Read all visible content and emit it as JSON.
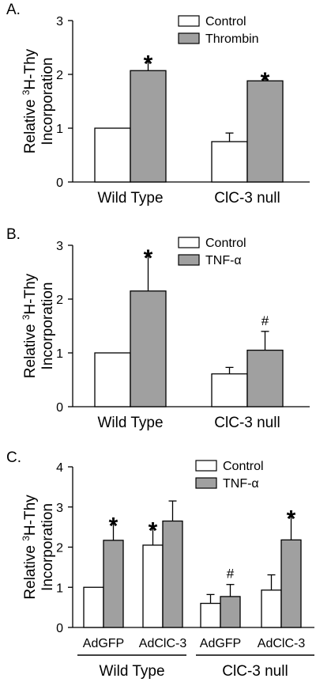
{
  "colors": {
    "control": "#ffffff",
    "treated": "#a0a0a0",
    "stroke": "#000000"
  },
  "chart_data": [
    {
      "type": "bar",
      "panel_label": "A.",
      "ylabel_lines": [
        "Relative ³H-Thy",
        "Incorporation"
      ],
      "ylim": [
        0,
        3
      ],
      "yticks": [
        0,
        1,
        2,
        3
      ],
      "categories": [
        "Wild Type",
        "ClC-3 null"
      ],
      "series": [
        {
          "name": "Control",
          "values": [
            1.0,
            0.75
          ],
          "errors": [
            0,
            0.16
          ],
          "sig": [
            "",
            ""
          ]
        },
        {
          "name": "Thrombin",
          "values": [
            2.07,
            1.88
          ],
          "errors": [
            0.22,
            0.09
          ],
          "sig": [
            "*",
            "*"
          ]
        }
      ],
      "legend_position": "top-right"
    },
    {
      "type": "bar",
      "panel_label": "B.",
      "ylabel_lines": [
        "Relative ³H-Thy",
        "Incorporation"
      ],
      "ylim": [
        0,
        3
      ],
      "yticks": [
        0,
        1,
        2,
        3
      ],
      "categories": [
        "Wild Type",
        "ClC-3 null"
      ],
      "series": [
        {
          "name": "Control",
          "values": [
            1.0,
            0.61
          ],
          "errors": [
            0,
            0.12
          ],
          "sig": [
            "",
            ""
          ]
        },
        {
          "name": "TNF-α",
          "values": [
            2.15,
            1.05
          ],
          "errors": [
            0.7,
            0.35
          ],
          "sig": [
            "*",
            "#"
          ]
        }
      ],
      "legend_position": "top-right"
    },
    {
      "type": "bar",
      "panel_label": "C.",
      "ylabel_lines": [
        "Relative ³H-Thy",
        "Incorporation"
      ],
      "ylim": [
        0,
        4
      ],
      "yticks": [
        0,
        1,
        2,
        3,
        4
      ],
      "categories": [
        "AdGFP",
        "AdClC-3",
        "AdGFP",
        "AdClC-3"
      ],
      "groups": [
        "Wild Type",
        "ClC-3 null"
      ],
      "series": [
        {
          "name": "Control",
          "values": [
            1.0,
            2.05,
            0.6,
            0.93
          ],
          "errors": [
            0,
            0.48,
            0.22,
            0.38
          ],
          "sig": [
            "",
            "*",
            "",
            ""
          ]
        },
        {
          "name": "TNF-α",
          "values": [
            2.17,
            2.65,
            0.77,
            2.18
          ],
          "errors": [
            0.48,
            0.5,
            0.3,
            0.65
          ],
          "sig": [
            "*",
            "",
            "#",
            "*"
          ]
        }
      ],
      "legend_position": "top-right"
    }
  ]
}
